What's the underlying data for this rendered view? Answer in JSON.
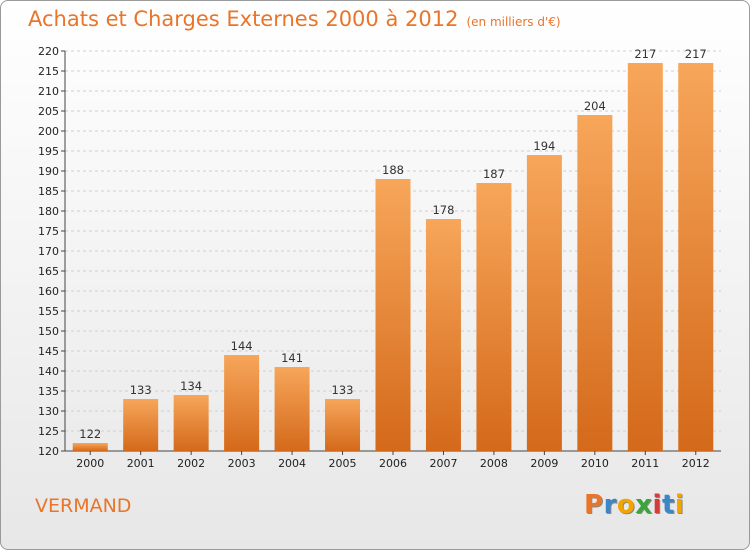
{
  "header": {
    "title": "Achats et Charges Externes 2000 à 2012",
    "unit": "(en milliers d'€)"
  },
  "footer": {
    "commune": "VERMAND",
    "logo_letters": [
      "P",
      "r",
      "o",
      "x",
      "i",
      "t",
      "i"
    ],
    "logo_colors": [
      "#e8752a",
      "#3a86c8",
      "#f2a400",
      "#3aa53a",
      "#d43b3b",
      "#3a86c8",
      "#f2a400"
    ]
  },
  "colors": {
    "bar_light": "#f7a65a",
    "bar_dark": "#d4691a",
    "title": "#e8752a"
  },
  "chart_data": {
    "type": "bar",
    "title": "Achats et Charges Externes 2000 à 2012",
    "subtitle": "(en milliers d'€)",
    "xlabel": "",
    "ylabel": "",
    "categories": [
      "2000",
      "2001",
      "2002",
      "2003",
      "2004",
      "2005",
      "2006",
      "2007",
      "2008",
      "2009",
      "2010",
      "2011",
      "2012"
    ],
    "values": [
      122,
      133,
      134,
      144,
      141,
      133,
      188,
      178,
      187,
      194,
      204,
      217,
      217
    ],
    "ylim": [
      120,
      220
    ],
    "yticks": [
      120,
      125,
      130,
      135,
      140,
      145,
      150,
      155,
      160,
      165,
      170,
      175,
      180,
      185,
      190,
      195,
      200,
      205,
      210,
      215,
      220
    ],
    "grid": "horizontal",
    "legend": "none"
  }
}
